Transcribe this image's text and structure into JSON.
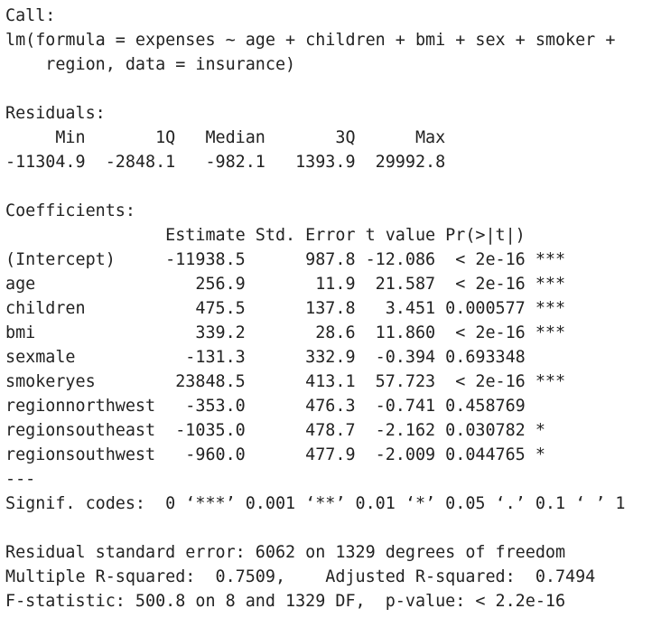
{
  "output": {
    "call_header": "Call:",
    "call_line_1": "lm(formula = expenses ~ age + children + bmi + sex + smoker +",
    "call_line_2": "    region, data = insurance)",
    "residuals_header": "Residuals:",
    "residuals_cols": "     Min       1Q   Median       3Q      Max ",
    "residuals_vals": "-11304.9  -2848.1   -982.1   1393.9  29992.8 ",
    "coefficients_header": "Coefficients:",
    "coef_cols": "                Estimate Std. Error t value Pr(>|t|)    ",
    "coef_rows": [
      "(Intercept)     -11938.5      987.8 -12.086  < 2e-16 ***",
      "age                256.9       11.9  21.587  < 2e-16 ***",
      "children           475.5      137.8   3.451 0.000577 ***",
      "bmi                339.2       28.6  11.860  < 2e-16 ***",
      "sexmale           -131.3      332.9  -0.394 0.693348    ",
      "smokeryes        23848.5      413.1  57.723  < 2e-16 ***",
      "regionnorthwest   -353.0      476.3  -0.741 0.458769    ",
      "regionsoutheast  -1035.0      478.7  -2.162 0.030782 *  ",
      "regionsouthwest   -960.0      477.9  -2.009 0.044765 *  "
    ],
    "separator": "---",
    "signif_codes": "Signif. codes:  0 ‘***’ 0.001 ‘**’ 0.01 ‘*’ 0.05 ‘.’ 0.1 ‘ ’ 1",
    "residual_se": "Residual standard error: 6062 on 1329 degrees of freedom",
    "r_squared": "Multiple R-squared:  0.7509,\tAdjusted R-squared:  0.7494 ",
    "f_statistic": "F-statistic: 500.8 on 8 and 1329 DF,  p-value: < 2.2e-16"
  }
}
